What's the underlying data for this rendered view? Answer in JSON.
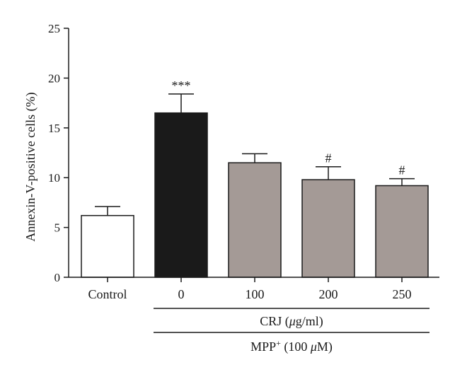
{
  "chart_data": {
    "type": "bar",
    "title": "",
    "ylabel": "Annexin-V-positive cells (%)",
    "ylim": [
      0,
      25
    ],
    "yticks": [
      0,
      5,
      10,
      15,
      20,
      25
    ],
    "grid": false,
    "legend": "none",
    "categories": [
      "Control",
      "0",
      "100",
      "200",
      "250"
    ],
    "values": [
      6.2,
      16.5,
      11.5,
      9.8,
      9.2
    ],
    "errors": [
      0.9,
      1.9,
      0.9,
      1.3,
      0.7
    ],
    "bar_colors": [
      "#ffffff",
      "#1a1a1a",
      "#a49a96",
      "#a49a96",
      "#a49a96"
    ],
    "annotations": [
      "",
      "***",
      "",
      "#",
      "#"
    ],
    "groups": [
      {
        "label_main": "CRJ (",
        "label_italic": "μ",
        "label_rest": "g/ml)",
        "from": 1,
        "to": 4
      },
      {
        "label_main": "MPP",
        "label_sup": "+",
        "label_mid": " (100 ",
        "label_italic": "μ",
        "label_rest": "M)",
        "from": 1,
        "to": 4
      }
    ]
  }
}
